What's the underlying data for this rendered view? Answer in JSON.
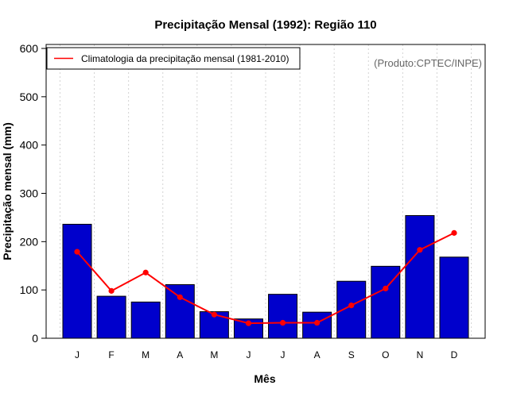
{
  "chart_data": {
    "type": "bar",
    "title": "Precipitação Mensal (1992): Região 110",
    "xlabel": "Mês",
    "ylabel": "Precipitação mensal (mm)",
    "ylim": [
      0,
      600
    ],
    "yticks": [
      0,
      100,
      200,
      300,
      400,
      500,
      600
    ],
    "categories": [
      "J",
      "F",
      "M",
      "A",
      "M",
      "J",
      "J",
      "A",
      "S",
      "O",
      "N",
      "D"
    ],
    "series": [
      {
        "name": "Precipitação mensal (1992)",
        "type": "bar",
        "color": "#0000CC",
        "values": [
          236,
          87,
          75,
          111,
          55,
          40,
          91,
          54,
          118,
          149,
          254,
          168
        ]
      },
      {
        "name": "Climatologia da precipitação mensal (1981-2010)",
        "type": "line",
        "color": "#FF0000",
        "values": [
          179,
          98,
          136,
          85,
          49,
          31,
          32,
          32,
          68,
          103,
          183,
          218
        ]
      }
    ],
    "legend": {
      "position": "top-left",
      "label": "Climatologia da precipitação mensal (1981-2010)"
    },
    "credit": "(Produto:CPTEC/INPE)",
    "grid": "vertical-dotted"
  }
}
